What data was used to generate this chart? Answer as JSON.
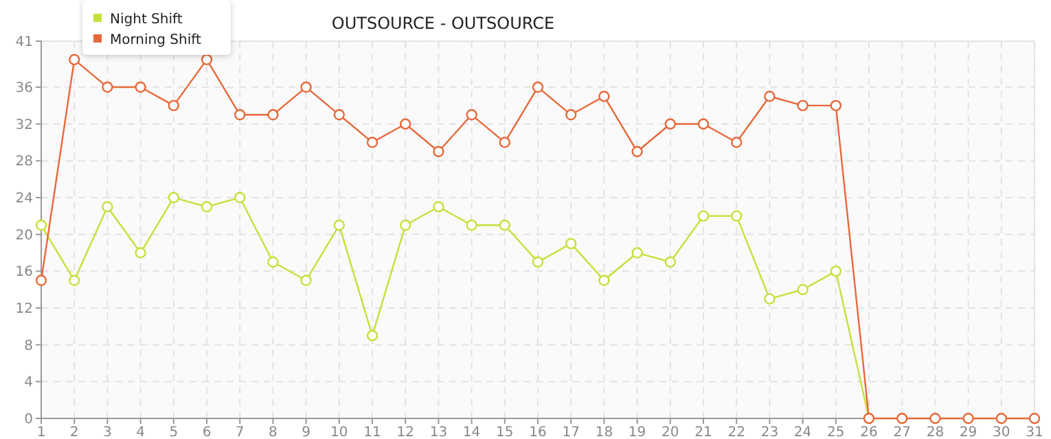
{
  "chart_data": {
    "type": "line",
    "title": "OUTSOURCE - OUTSOURCE",
    "x": [
      1,
      2,
      3,
      4,
      5,
      6,
      7,
      8,
      9,
      10,
      11,
      12,
      13,
      14,
      15,
      16,
      17,
      18,
      19,
      20,
      21,
      22,
      23,
      24,
      25,
      26,
      27,
      28,
      29,
      30,
      31
    ],
    "series": [
      {
        "name": "Night Shift",
        "color": "#c5e03a",
        "values": [
          21,
          15,
          23,
          18,
          24,
          23,
          24,
          17,
          15,
          21,
          9,
          21,
          23,
          21,
          21,
          17,
          19,
          15,
          18,
          17,
          22,
          22,
          13,
          14,
          16,
          0,
          null,
          null,
          null,
          null,
          null
        ]
      },
      {
        "name": "Morning Shift",
        "color": "#e8683a",
        "values": [
          15,
          39,
          36,
          36,
          34,
          39,
          33,
          33,
          36,
          33,
          30,
          32,
          29,
          33,
          30,
          36,
          33,
          35,
          29,
          32,
          32,
          30,
          35,
          34,
          34,
          0,
          0,
          0,
          0,
          0,
          0
        ]
      }
    ],
    "xlim": [
      1,
      31
    ],
    "xticks": [
      1,
      2,
      3,
      4,
      5,
      6,
      7,
      8,
      9,
      10,
      11,
      12,
      13,
      14,
      15,
      16,
      17,
      18,
      19,
      20,
      21,
      22,
      23,
      24,
      25,
      26,
      27,
      28,
      29,
      30,
      31
    ],
    "ylim": [
      0,
      41
    ],
    "yticks": [
      0,
      4,
      8,
      12,
      16,
      20,
      24,
      28,
      32,
      36,
      41
    ],
    "grid": true,
    "legend": "top left",
    "marker": "circle",
    "line_style": "solid"
  }
}
